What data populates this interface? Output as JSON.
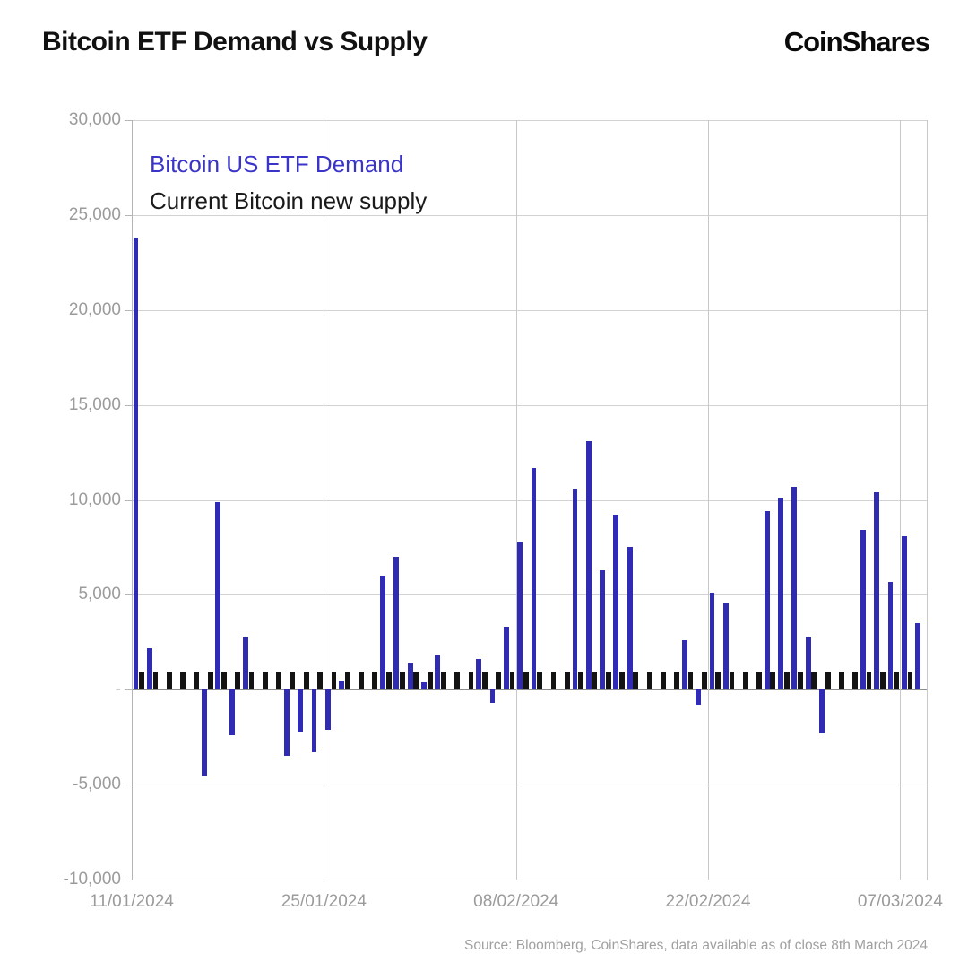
{
  "header": {
    "title": "Bitcoin ETF Demand vs Supply",
    "logo": "CoinShares"
  },
  "legend": {
    "demand_label": "Bitcoin US ETF Demand",
    "supply_label": "Current Bitcoin new supply"
  },
  "source_note": "Source: Bloomberg, CoinShares, data available as of close 8th March 2024",
  "colors": {
    "demand_bar": "#2f2bb3",
    "supply_bar": "#131313",
    "legend_demand_text": "#3a35c8",
    "legend_supply_text": "#1a1a1a",
    "grid": "#d2d2d2",
    "axis_text": "#9b9b9b",
    "zero_line": "#8c8c8c"
  },
  "chart_data": {
    "type": "bar",
    "title": "Bitcoin ETF Demand vs Supply",
    "xlabel": "",
    "ylabel": "",
    "ylim": [
      -10000,
      30000
    ],
    "ytick_values": [
      30000,
      25000,
      20000,
      15000,
      10000,
      5000,
      0,
      -5000,
      -10000
    ],
    "ytick_labels": [
      "30,000",
      "25,000",
      "20,000",
      "15,000",
      "10,000",
      "5,000",
      "-",
      "-5,000",
      "-10,000"
    ],
    "xtick_labels": [
      "11/01/2024",
      "25/01/2024",
      "08/02/2024",
      "22/02/2024",
      "07/03/2024"
    ],
    "xtick_day_indices": [
      0,
      14,
      28,
      42,
      56
    ],
    "grid": true,
    "legend_position": "top-left-inside",
    "dates": [
      "11/01/2024",
      "12/01/2024",
      "13/01/2024",
      "14/01/2024",
      "15/01/2024",
      "16/01/2024",
      "17/01/2024",
      "18/01/2024",
      "19/01/2024",
      "20/01/2024",
      "21/01/2024",
      "22/01/2024",
      "23/01/2024",
      "24/01/2024",
      "25/01/2024",
      "26/01/2024",
      "27/01/2024",
      "28/01/2024",
      "29/01/2024",
      "30/01/2024",
      "31/01/2024",
      "01/02/2024",
      "02/02/2024",
      "03/02/2024",
      "04/02/2024",
      "05/02/2024",
      "06/02/2024",
      "07/02/2024",
      "08/02/2024",
      "09/02/2024",
      "10/02/2024",
      "11/02/2024",
      "12/02/2024",
      "13/02/2024",
      "14/02/2024",
      "15/02/2024",
      "16/02/2024",
      "17/02/2024",
      "18/02/2024",
      "19/02/2024",
      "20/02/2024",
      "21/02/2024",
      "22/02/2024",
      "23/02/2024",
      "24/02/2024",
      "25/02/2024",
      "26/02/2024",
      "27/02/2024",
      "28/02/2024",
      "29/02/2024",
      "01/03/2024",
      "02/03/2024",
      "03/03/2024",
      "04/03/2024",
      "05/03/2024",
      "06/03/2024",
      "07/03/2024",
      "08/03/2024"
    ],
    "series": [
      {
        "name": "Bitcoin US ETF Demand",
        "color": "#2f2bb3",
        "values": [
          23800,
          2200,
          null,
          null,
          null,
          -4500,
          9900,
          -2400,
          2800,
          null,
          null,
          -3500,
          -2200,
          -3300,
          -2100,
          500,
          null,
          null,
          6000,
          7000,
          1400,
          400,
          1800,
          null,
          null,
          1600,
          -700,
          3300,
          7800,
          11700,
          null,
          null,
          10600,
          13100,
          6300,
          9200,
          7500,
          null,
          null,
          null,
          2600,
          -800,
          5100,
          4600,
          null,
          null,
          9400,
          10100,
          10700,
          2800,
          -2300,
          null,
          null,
          8400,
          10400,
          5700,
          8100,
          3500
        ]
      },
      {
        "name": "Current Bitcoin new supply",
        "color": "#131313",
        "values": [
          900,
          900,
          900,
          900,
          900,
          900,
          900,
          900,
          900,
          900,
          900,
          900,
          900,
          900,
          900,
          900,
          900,
          900,
          900,
          900,
          900,
          900,
          900,
          900,
          900,
          900,
          900,
          900,
          900,
          900,
          900,
          900,
          900,
          900,
          900,
          900,
          900,
          900,
          900,
          900,
          900,
          900,
          900,
          900,
          900,
          900,
          900,
          900,
          900,
          900,
          900,
          900,
          900,
          900,
          900,
          900,
          900,
          null
        ]
      }
    ]
  }
}
